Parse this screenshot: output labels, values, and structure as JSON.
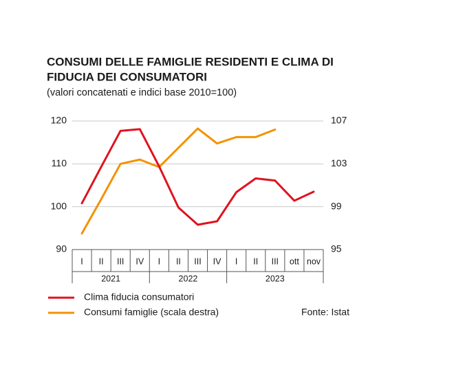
{
  "chart_data": {
    "type": "line",
    "title": [
      "CONSUMI DELLE FAMIGLIE RESIDENTI E CLIMA DI",
      "FIDUCIA DEI CONSUMATORI"
    ],
    "subtitle": "(valori concatenati e indici base 2010=100)",
    "categories": [
      "I",
      "II",
      "III",
      "IV",
      "I",
      "II",
      "III",
      "IV",
      "I",
      "II",
      "III",
      "ott",
      "nov"
    ],
    "groups": [
      {
        "label": "2021",
        "size": 4
      },
      {
        "label": "2022",
        "size": 4
      },
      {
        "label": "2023",
        "size": 5
      }
    ],
    "series": [
      {
        "name": "Clima fiducia consumatori",
        "color": "#e0121e",
        "values": [
          100.8,
          109.3,
          117.7,
          118.1,
          109.4,
          99.8,
          95.8,
          96.6,
          103.4,
          106.6,
          106.1,
          101.4,
          103.5
        ]
      },
      {
        "name": "Consumi famiglie (scala destra)",
        "color": "#f39200",
        "axis": "y2",
        "values": [
          96.5,
          99.7,
          103,
          103.4,
          102.7,
          104.5,
          106.3,
          104.9,
          105.5,
          105.5,
          106.2,
          null,
          null
        ]
      }
    ],
    "ylim": [
      90,
      120
    ],
    "yticks": [
      90,
      100,
      110,
      120
    ],
    "y2lim": [
      95,
      107
    ],
    "y2ticks": [
      95,
      99,
      103,
      107
    ],
    "grid": true,
    "source": "Fonte: Istat"
  }
}
